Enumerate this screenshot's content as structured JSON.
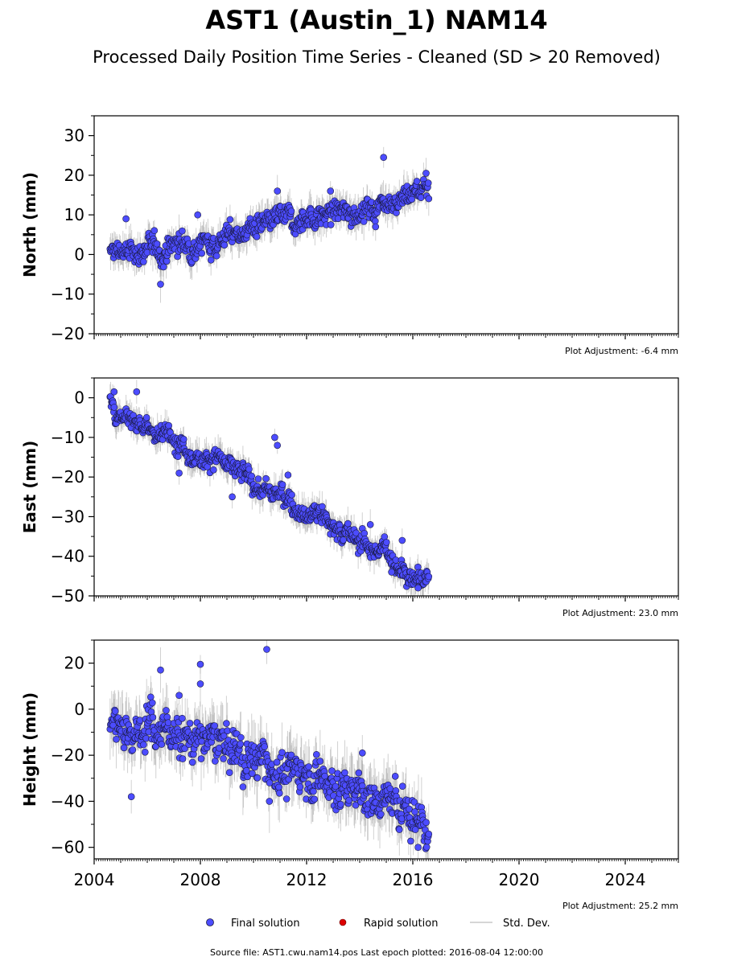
{
  "title": "AST1 (Austin_1) NAM14",
  "subtitle": "Processed Daily Position Time Series - Cleaned (SD > 20 Removed)",
  "footer": "Source file: AST1.cwu.nam14.pos  Last epoch plotted: 2016-08-04 12:00:00",
  "colors": {
    "final": "#4c4cff",
    "rapid": "#dd0000",
    "stddev": "#9a9a9a",
    "marker_edge": "#1a1a40"
  },
  "legend": {
    "placement": "bottom-center",
    "items": [
      {
        "label": "Final solution",
        "marker": "circle",
        "color": "#4c4cff"
      },
      {
        "label": "Rapid solution",
        "marker": "circle",
        "color": "#dd0000"
      },
      {
        "label": "Std. Dev.",
        "marker": "line",
        "color": "#c8c8c8"
      }
    ]
  },
  "chart_data": [
    {
      "type": "scatter",
      "ylabel": "North (mm)",
      "adjustment": "Plot Adjustment: -6.4 mm",
      "xlim": [
        2004.0,
        2026.0
      ],
      "ylim": [
        -20,
        35
      ],
      "yticks": [
        -20,
        -10,
        0,
        10,
        20,
        30
      ],
      "xticks": [
        2004,
        2008,
        2012,
        2016,
        2020,
        2024
      ],
      "show_xticklabels": false,
      "trend": [
        [
          2004.6,
          0
        ],
        [
          2005.0,
          1
        ],
        [
          2005.5,
          0
        ],
        [
          2006.0,
          2
        ],
        [
          2006.5,
          0
        ],
        [
          2007.0,
          3
        ],
        [
          2007.5,
          2
        ],
        [
          2008.0,
          4
        ],
        [
          2008.5,
          3
        ],
        [
          2009.0,
          5
        ],
        [
          2009.5,
          5
        ],
        [
          2010.0,
          7
        ],
        [
          2010.5,
          6
        ],
        [
          2011.0,
          9
        ],
        [
          2011.5,
          8
        ],
        [
          2012.0,
          10
        ],
        [
          2012.5,
          9
        ],
        [
          2013.0,
          11
        ],
        [
          2013.5,
          10
        ],
        [
          2014.0,
          12
        ],
        [
          2014.5,
          11
        ],
        [
          2015.0,
          15
        ],
        [
          2015.5,
          14
        ],
        [
          2016.0,
          16
        ],
        [
          2016.6,
          17
        ]
      ],
      "noise": 2.2,
      "outliers": [
        [
          2005.2,
          9
        ],
        [
          2006.5,
          -7.5
        ],
        [
          2007.9,
          10
        ],
        [
          2010.9,
          16
        ],
        [
          2012.9,
          16
        ],
        [
          2014.9,
          24.5
        ],
        [
          2014.6,
          7
        ],
        [
          2016.5,
          20.5
        ]
      ]
    },
    {
      "type": "scatter",
      "ylabel": "East (mm)",
      "adjustment": "Plot Adjustment: 23.0 mm",
      "xlim": [
        2004.0,
        2026.0
      ],
      "ylim": [
        -50,
        5
      ],
      "yticks": [
        -50,
        -40,
        -30,
        -20,
        -10,
        0
      ],
      "xticks": [
        2004,
        2008,
        2012,
        2016,
        2020,
        2024
      ],
      "show_xticklabels": false,
      "trend": [
        [
          2004.6,
          -1
        ],
        [
          2005.0,
          -5
        ],
        [
          2005.5,
          -6
        ],
        [
          2006.0,
          -8
        ],
        [
          2006.5,
          -10
        ],
        [
          2007.0,
          -9
        ],
        [
          2007.5,
          -13
        ],
        [
          2008.0,
          -15
        ],
        [
          2008.5,
          -14
        ],
        [
          2009.0,
          -18
        ],
        [
          2009.5,
          -19
        ],
        [
          2010.0,
          -22
        ],
        [
          2010.5,
          -23
        ],
        [
          2011.0,
          -25
        ],
        [
          2011.5,
          -27
        ],
        [
          2012.0,
          -29
        ],
        [
          2012.5,
          -28
        ],
        [
          2013.0,
          -33
        ],
        [
          2013.5,
          -34
        ],
        [
          2014.0,
          -36
        ],
        [
          2014.5,
          -38
        ],
        [
          2015.0,
          -39
        ],
        [
          2015.5,
          -42
        ],
        [
          2016.0,
          -45
        ],
        [
          2016.6,
          -46
        ]
      ],
      "noise": 2.0,
      "outliers": [
        [
          2004.75,
          1.5
        ],
        [
          2005.6,
          1.5
        ],
        [
          2007.2,
          -19
        ],
        [
          2009.2,
          -25
        ],
        [
          2010.8,
          -10
        ],
        [
          2010.9,
          -12
        ],
        [
          2011.3,
          -19.5
        ],
        [
          2014.4,
          -32
        ],
        [
          2015.2,
          -44
        ],
        [
          2015.6,
          -36
        ],
        [
          2016.2,
          -48
        ]
      ]
    },
    {
      "type": "scatter",
      "ylabel": "Height (mm)",
      "adjustment": "Plot Adjustment: 25.2 mm",
      "xlim": [
        2004.0,
        2026.0
      ],
      "ylim": [
        -65,
        30
      ],
      "yticks": [
        -60,
        -40,
        -20,
        0,
        20
      ],
      "xticks": [
        2004,
        2008,
        2012,
        2016,
        2020,
        2024
      ],
      "xticklabels": [
        "2004",
        "2008",
        "2012",
        "2016",
        "2020",
        "2024"
      ],
      "show_xticklabels": true,
      "trend": [
        [
          2004.6,
          -3
        ],
        [
          2005.0,
          -5
        ],
        [
          2005.5,
          -8
        ],
        [
          2006.0,
          -6
        ],
        [
          2006.5,
          -10
        ],
        [
          2007.0,
          -8
        ],
        [
          2007.5,
          -14
        ],
        [
          2008.0,
          -12
        ],
        [
          2008.5,
          -15
        ],
        [
          2009.0,
          -17
        ],
        [
          2009.5,
          -19
        ],
        [
          2010.0,
          -22
        ],
        [
          2010.5,
          -24
        ],
        [
          2011.0,
          -27
        ],
        [
          2011.5,
          -28
        ],
        [
          2012.0,
          -25
        ],
        [
          2012.5,
          -30
        ],
        [
          2013.0,
          -32
        ],
        [
          2013.5,
          -35
        ],
        [
          2014.0,
          -36
        ],
        [
          2014.5,
          -39
        ],
        [
          2015.0,
          -40
        ],
        [
          2015.5,
          -42
        ],
        [
          2016.0,
          -45
        ],
        [
          2016.6,
          -50
        ]
      ],
      "noise": 6.5,
      "outliers": [
        [
          2005.4,
          -38
        ],
        [
          2006.5,
          17
        ],
        [
          2007.2,
          6
        ],
        [
          2008.0,
          19.5
        ],
        [
          2008.0,
          11
        ],
        [
          2010.5,
          26
        ],
        [
          2010.6,
          -40
        ],
        [
          2014.1,
          -19
        ],
        [
          2016.2,
          -60
        ]
      ]
    }
  ]
}
